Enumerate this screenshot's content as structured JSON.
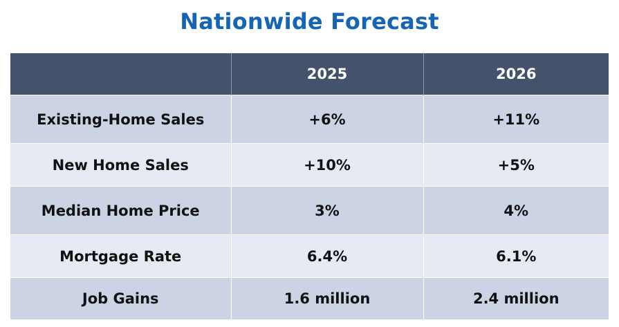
{
  "title": "Nationwide Forecast",
  "table": {
    "headers": [
      "",
      "2025",
      "2026"
    ],
    "rows": [
      {
        "label": "Existing-Home Sales",
        "y2025": "+6%",
        "y2026": "+11%"
      },
      {
        "label": "New Home Sales",
        "y2025": "+10%",
        "y2026": "+5%"
      },
      {
        "label": "Median Home Price",
        "y2025": "3%",
        "y2026": "4%"
      },
      {
        "label": "Mortgage Rate",
        "y2025": "6.4%",
        "y2026": "6.1%"
      },
      {
        "label": "Job Gains",
        "y2025": "1.6 million",
        "y2026": "2.4 million"
      }
    ]
  },
  "colors": {
    "title": "#1565b4",
    "header_bg": "#44536b",
    "row_dark": "#cbd3e4",
    "row_light": "#e6eaf3"
  }
}
